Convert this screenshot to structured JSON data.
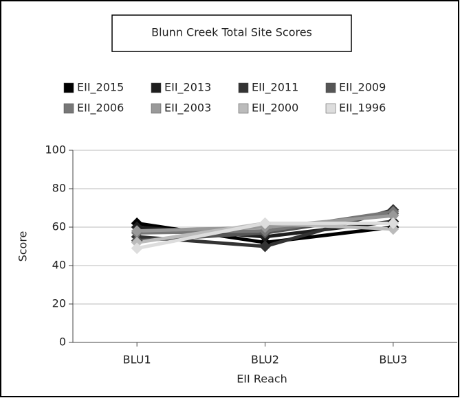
{
  "chart_data": {
    "type": "line",
    "title": "Blunn Creek Total Site Scores",
    "x_label": "EII Reach",
    "y_label": "Score",
    "categories": [
      "BLU1",
      "BLU2",
      "BLU3"
    ],
    "series": [
      {
        "name": "EII_2015",
        "color": "#000000",
        "values": [
          62,
          52,
          60
        ]
      },
      {
        "name": "EII_2013",
        "color": "#1e1e1e",
        "values": [
          60,
          55,
          63
        ]
      },
      {
        "name": "EII_2011",
        "color": "#333333",
        "values": [
          55,
          50,
          69
        ]
      },
      {
        "name": "EII_2009",
        "color": "#555555",
        "values": [
          53,
          57,
          67
        ]
      },
      {
        "name": "EII_2006",
        "color": "#777777",
        "values": [
          57,
          58,
          68
        ]
      },
      {
        "name": "EII_2003",
        "color": "#999999",
        "values": [
          58,
          60,
          66
        ]
      },
      {
        "name": "EII_2000",
        "color": "#bbbbbb",
        "values": [
          52,
          62,
          59
        ]
      },
      {
        "name": "EII_1996",
        "color": "#dddddd",
        "values": [
          49,
          62,
          62
        ]
      }
    ],
    "ylim": [
      0,
      100
    ],
    "yticks": [
      0,
      20,
      40,
      60,
      80,
      100
    ],
    "grid": true
  }
}
